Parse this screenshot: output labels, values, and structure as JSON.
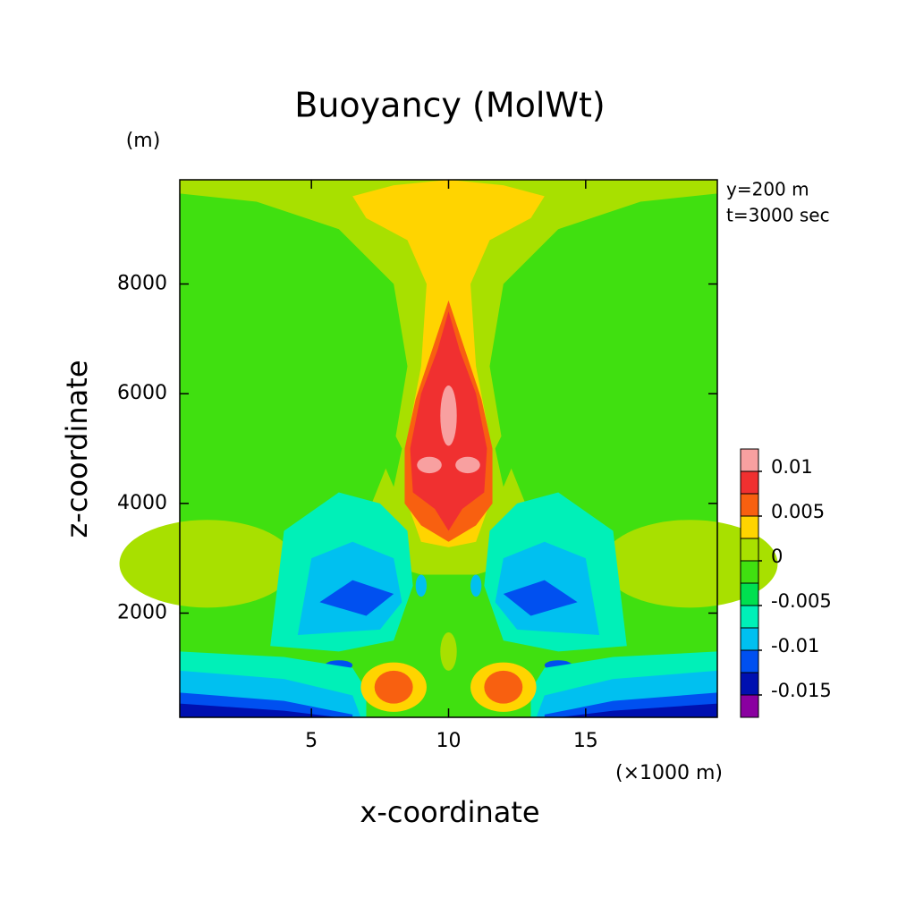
{
  "chart_data": {
    "type": "contour",
    "title": "Buoyancy (MolWt)",
    "y_unit": "(m)",
    "x_unit": "(×1000 m)",
    "annotations": [
      "y=200 m",
      "t=3000 sec"
    ],
    "xlabel": "x-coordinate",
    "ylabel": "z-coordinate",
    "xlim": [
      0.2,
      19.8
    ],
    "ylim": [
      100,
      9900
    ],
    "xticks": [
      5,
      10,
      15
    ],
    "yticks": [
      2000,
      4000,
      6000,
      8000
    ],
    "levels": [
      -0.0175,
      -0.015,
      -0.0125,
      -0.01,
      -0.0075,
      -0.005,
      -0.0025,
      0,
      0.0025,
      0.005,
      0.0075,
      0.01,
      0.0125
    ],
    "colors": [
      "#8a00a0",
      "#0010b0",
      "#0050f0",
      "#00c0f0",
      "#00f0b8",
      "#00e050",
      "#40e010",
      "#a8e000",
      "#ffd400",
      "#f86010",
      "#f03030",
      "#f8a0a0"
    ],
    "colorbar_ticks": [
      -0.015,
      -0.01,
      -0.005,
      0,
      0.005,
      0.01
    ]
  }
}
